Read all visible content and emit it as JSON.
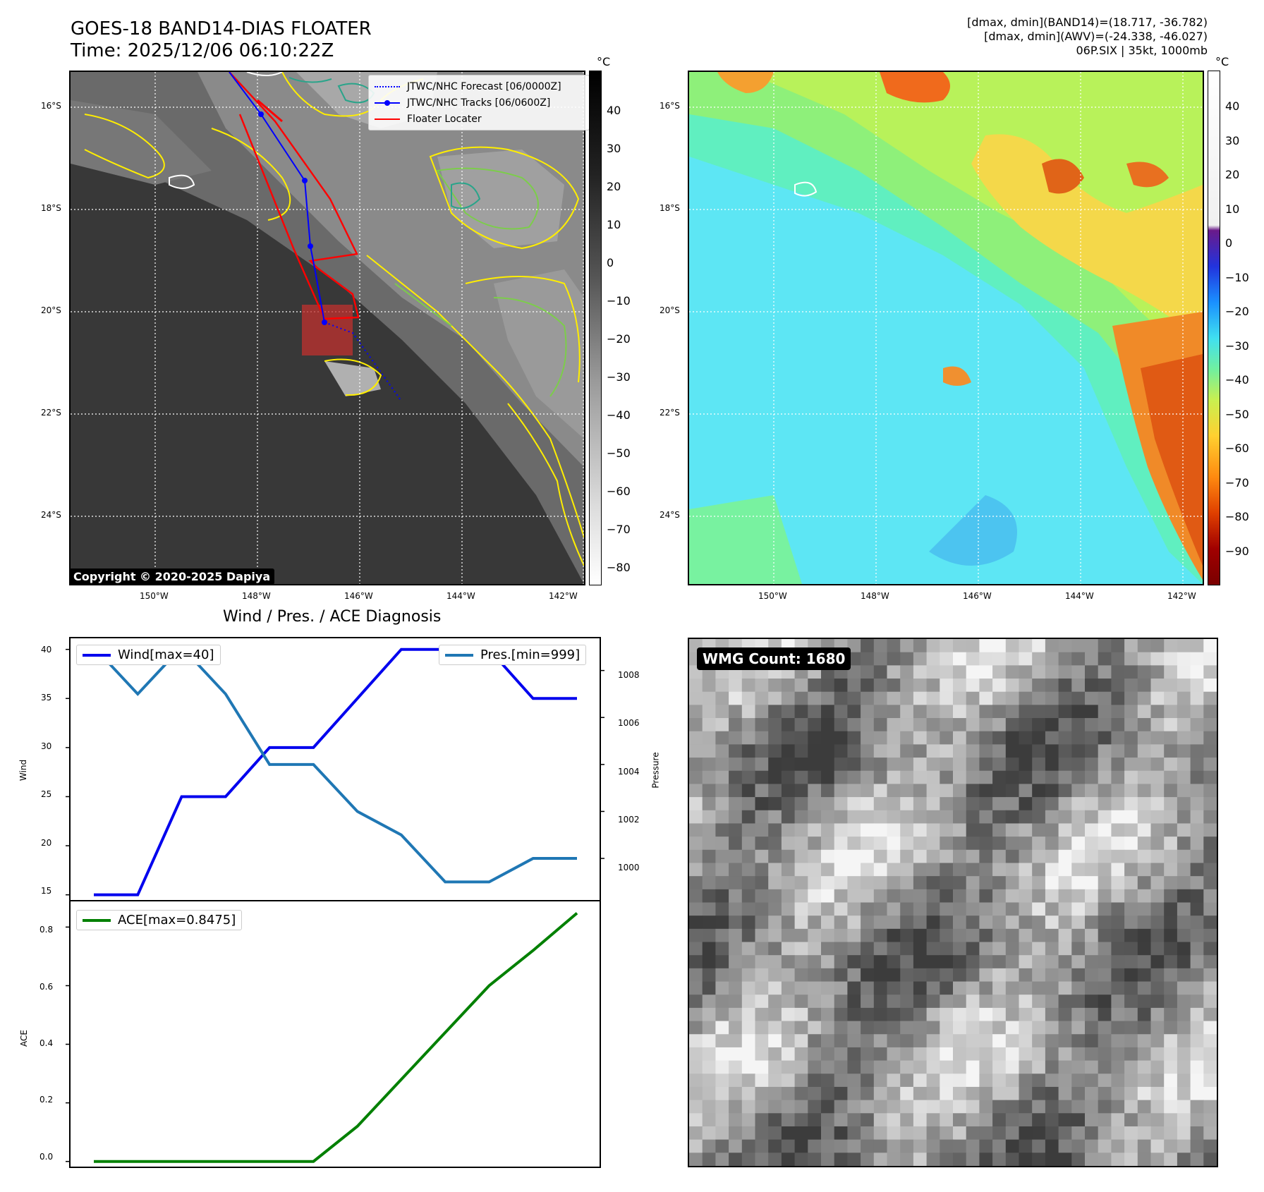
{
  "header": {
    "title_line1": "GOES-18 BAND14-DIAS FLOATER",
    "title_line2": "Time: 2025/12/06 06:10:22Z",
    "info_line1": "[dmax, dmin](BAND14)=(18.717, -36.782)",
    "info_line2": "[dmax, dmin](AWV)=(-24.338, -46.027)",
    "info_line3": "06P.SIX | 35kt, 1000mb"
  },
  "map": {
    "lat_ticks": [
      "16°S",
      "18°S",
      "20°S",
      "22°S",
      "24°S"
    ],
    "lon_ticks": [
      "150°W",
      "148°W",
      "146°W",
      "144°W",
      "142°W"
    ],
    "copyright": "Copyright © 2020-2025 Dapiya",
    "legend": [
      {
        "label": "JTWC/NHC Forecast [06/0000Z]",
        "color": "#0000ff",
        "style": "dotted"
      },
      {
        "label": "JTWC/NHC Tracks [06/0600Z]",
        "color": "#0000ff",
        "style": "solid-marker"
      },
      {
        "label": "Floater Locater",
        "color": "#ff0000",
        "style": "solid"
      }
    ],
    "colorbar_left": {
      "unit": "°C",
      "ticks": [
        "40",
        "30",
        "20",
        "10",
        "0",
        "−10",
        "−20",
        "−30",
        "−40",
        "−50",
        "−60",
        "−70",
        "−80"
      ]
    },
    "colorbar_right": {
      "unit": "°C",
      "ticks": [
        "40",
        "30",
        "20",
        "10",
        "0",
        "−10",
        "−20",
        "−30",
        "−40",
        "−50",
        "−60",
        "−70",
        "−80",
        "−90"
      ]
    },
    "colors": {
      "accent_track": "#0000ff",
      "floater": "#ff0000",
      "contour_yellow": "#ffee00",
      "contour_green": "#7ccd4a",
      "contour_teal": "#2aa48a"
    }
  },
  "diagnosis": {
    "title": "Wind / Pres. / ACE Diagnosis",
    "wind_ylabel": "Wind",
    "pressure_ylabel": "Pressure",
    "ace_ylabel": "ACE",
    "wind_ticks": [
      "40",
      "35",
      "30",
      "25",
      "20",
      "15"
    ],
    "pressure_ticks": [
      "1008",
      "1006",
      "1004",
      "1002",
      "1000"
    ],
    "ace_ticks": [
      "0.8",
      "0.6",
      "0.4",
      "0.2",
      "0.0"
    ],
    "wind_legend": "Wind[max=40]",
    "pres_legend": "Pres.[min=999]",
    "ace_legend": "ACE[max=0.8475]"
  },
  "chart_data": [
    {
      "type": "line",
      "x": [
        0,
        1,
        2,
        3,
        4,
        5,
        6,
        7,
        8,
        9,
        10,
        11
      ],
      "series": [
        {
          "name": "Wind[max=40]",
          "color": "#0000ee",
          "values": [
            15,
            15,
            25,
            25,
            30,
            30,
            35,
            40,
            40,
            40,
            35,
            35
          ]
        },
        {
          "name": "Pres.[min=999]",
          "color": "#1f77b4",
          "axis": "right",
          "values": [
            1009,
            1007,
            1009,
            1007,
            1004,
            1004,
            1002,
            1001,
            999,
            999,
            1000,
            1000
          ]
        }
      ],
      "ylim_left": [
        14.4,
        41.2
      ],
      "ylim_right": [
        998.2,
        1009.4
      ]
    },
    {
      "type": "line",
      "x": [
        0,
        1,
        2,
        3,
        4,
        5,
        6,
        7,
        8,
        9,
        10,
        11
      ],
      "series": [
        {
          "name": "ACE[max=0.8475]",
          "color": "#008000",
          "values": [
            0,
            0,
            0,
            0,
            0,
            0,
            0.12,
            0.28,
            0.44,
            0.6,
            0.72,
            0.8475
          ]
        }
      ],
      "ylim": [
        -0.02,
        0.89
      ]
    }
  ],
  "wmg": {
    "label": "WMG Count: 1680"
  }
}
